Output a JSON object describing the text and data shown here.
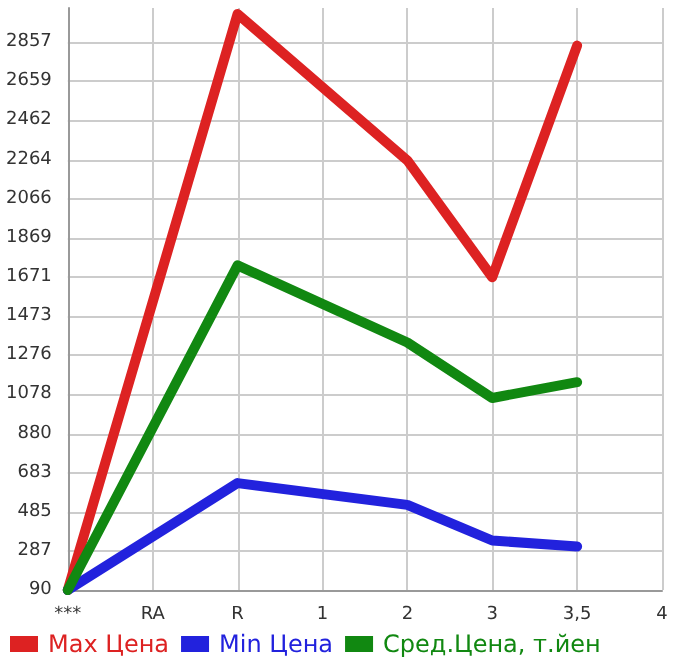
{
  "chart_data": {
    "type": "line",
    "categories": [
      "***",
      "RA",
      "R",
      "1",
      "2",
      "3",
      "3,5",
      "4"
    ],
    "series": [
      {
        "name": "Max Цена",
        "color": "#dd2222",
        "values": [
          90,
          null,
          3000,
          null,
          2260,
          1670,
          2840,
          null
        ]
      },
      {
        "name": "Min Цена",
        "color": "#2222dd",
        "values": [
          90,
          null,
          630,
          null,
          520,
          340,
          310,
          null
        ]
      },
      {
        "name": "Сред.Цена, т.йен",
        "color": "#118811",
        "values": [
          90,
          null,
          1730,
          null,
          1340,
          1060,
          1140,
          null
        ]
      }
    ],
    "ylim": [
      90,
      3030
    ],
    "yticks": [
      90,
      287,
      485,
      683,
      880,
      1078,
      1276,
      1473,
      1671,
      1869,
      2066,
      2264,
      2462,
      2659,
      2857
    ],
    "grid": true,
    "legend": "bottom",
    "marker": "none",
    "line_style": "solid"
  }
}
